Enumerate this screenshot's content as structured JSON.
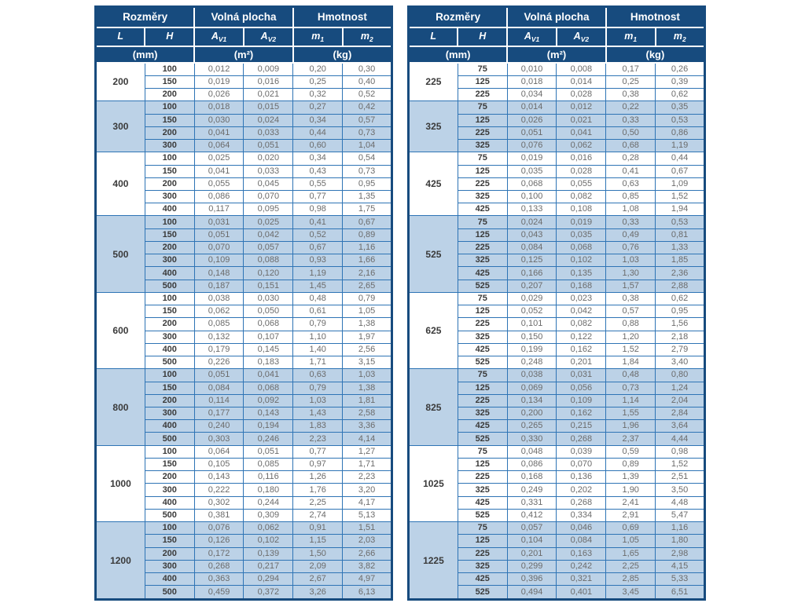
{
  "colors": {
    "header_bg": "#174B7E",
    "row_alt": "#BCD2E7",
    "border": "#2E74B5",
    "outer_border": "#174B7E",
    "value_text": "#6B6B6B",
    "dimension_text": "#3A3A3A"
  },
  "header": {
    "group_headers": [
      "Rozměry",
      "Volná plocha",
      "Hmotnost"
    ],
    "col_headers": [
      {
        "base": "L",
        "sub": ""
      },
      {
        "base": "H",
        "sub": ""
      },
      {
        "base": "A",
        "sub": "V1"
      },
      {
        "base": "A",
        "sub": "V2"
      },
      {
        "base": "m",
        "sub": "1"
      },
      {
        "base": "m",
        "sub": "2"
      }
    ],
    "unit_headers": [
      "(mm)",
      "(m²)",
      "(kg)"
    ]
  },
  "tables": [
    {
      "groups": [
        {
          "L": "200",
          "rows": [
            {
              "h": "100",
              "av1": "0,012",
              "av2": "0,009",
              "m1": "0,20",
              "m2": "0,30"
            },
            {
              "h": "150",
              "av1": "0,019",
              "av2": "0,016",
              "m1": "0,25",
              "m2": "0,40"
            },
            {
              "h": "200",
              "av1": "0,026",
              "av2": "0,021",
              "m1": "0,32",
              "m2": "0,52"
            }
          ]
        },
        {
          "L": "300",
          "rows": [
            {
              "h": "100",
              "av1": "0,018",
              "av2": "0,015",
              "m1": "0,27",
              "m2": "0,42"
            },
            {
              "h": "150",
              "av1": "0,030",
              "av2": "0,024",
              "m1": "0,34",
              "m2": "0,57"
            },
            {
              "h": "200",
              "av1": "0,041",
              "av2": "0,033",
              "m1": "0,44",
              "m2": "0,73"
            },
            {
              "h": "300",
              "av1": "0,064",
              "av2": "0,051",
              "m1": "0,60",
              "m2": "1,04"
            }
          ]
        },
        {
          "L": "400",
          "rows": [
            {
              "h": "100",
              "av1": "0,025",
              "av2": "0,020",
              "m1": "0,34",
              "m2": "0,54"
            },
            {
              "h": "150",
              "av1": "0,041",
              "av2": "0,033",
              "m1": "0,43",
              "m2": "0,73"
            },
            {
              "h": "200",
              "av1": "0,055",
              "av2": "0,045",
              "m1": "0,55",
              "m2": "0,95"
            },
            {
              "h": "300",
              "av1": "0,086",
              "av2": "0,070",
              "m1": "0,77",
              "m2": "1,35"
            },
            {
              "h": "400",
              "av1": "0,117",
              "av2": "0,095",
              "m1": "0,98",
              "m2": "1,75"
            }
          ]
        },
        {
          "L": "500",
          "rows": [
            {
              "h": "100",
              "av1": "0,031",
              "av2": "0,025",
              "m1": "0,41",
              "m2": "0,67"
            },
            {
              "h": "150",
              "av1": "0,051",
              "av2": "0,042",
              "m1": "0,52",
              "m2": "0,89"
            },
            {
              "h": "200",
              "av1": "0,070",
              "av2": "0,057",
              "m1": "0,67",
              "m2": "1,16"
            },
            {
              "h": "300",
              "av1": "0,109",
              "av2": "0,088",
              "m1": "0,93",
              "m2": "1,66"
            },
            {
              "h": "400",
              "av1": "0,148",
              "av2": "0,120",
              "m1": "1,19",
              "m2": "2,16"
            },
            {
              "h": "500",
              "av1": "0,187",
              "av2": "0,151",
              "m1": "1,45",
              "m2": "2,65"
            }
          ]
        },
        {
          "L": "600",
          "rows": [
            {
              "h": "100",
              "av1": "0,038",
              "av2": "0,030",
              "m1": "0,48",
              "m2": "0,79"
            },
            {
              "h": "150",
              "av1": "0,062",
              "av2": "0,050",
              "m1": "0,61",
              "m2": "1,05"
            },
            {
              "h": "200",
              "av1": "0,085",
              "av2": "0,068",
              "m1": "0,79",
              "m2": "1,38"
            },
            {
              "h": "300",
              "av1": "0,132",
              "av2": "0,107",
              "m1": "1,10",
              "m2": "1,97"
            },
            {
              "h": "400",
              "av1": "0,179",
              "av2": "0,145",
              "m1": "1,40",
              "m2": "2,56"
            },
            {
              "h": "500",
              "av1": "0,226",
              "av2": "0,183",
              "m1": "1,71",
              "m2": "3,15"
            }
          ]
        },
        {
          "L": "800",
          "rows": [
            {
              "h": "100",
              "av1": "0,051",
              "av2": "0,041",
              "m1": "0,63",
              "m2": "1,03"
            },
            {
              "h": "150",
              "av1": "0,084",
              "av2": "0,068",
              "m1": "0,79",
              "m2": "1,38"
            },
            {
              "h": "200",
              "av1": "0,114",
              "av2": "0,092",
              "m1": "1,03",
              "m2": "1,81"
            },
            {
              "h": "300",
              "av1": "0,177",
              "av2": "0,143",
              "m1": "1,43",
              "m2": "2,58"
            },
            {
              "h": "400",
              "av1": "0,240",
              "av2": "0,194",
              "m1": "1,83",
              "m2": "3,36"
            },
            {
              "h": "500",
              "av1": "0,303",
              "av2": "0,246",
              "m1": "2,23",
              "m2": "4,14"
            }
          ]
        },
        {
          "L": "1000",
          "rows": [
            {
              "h": "100",
              "av1": "0,064",
              "av2": "0,051",
              "m1": "0,77",
              "m2": "1,27"
            },
            {
              "h": "150",
              "av1": "0,105",
              "av2": "0,085",
              "m1": "0,97",
              "m2": "1,71"
            },
            {
              "h": "200",
              "av1": "0,143",
              "av2": "0,116",
              "m1": "1,26",
              "m2": "2,23"
            },
            {
              "h": "300",
              "av1": "0,222",
              "av2": "0,180",
              "m1": "1,76",
              "m2": "3,20"
            },
            {
              "h": "400",
              "av1": "0,302",
              "av2": "0,244",
              "m1": "2,25",
              "m2": "4,17"
            },
            {
              "h": "500",
              "av1": "0,381",
              "av2": "0,309",
              "m1": "2,74",
              "m2": "5,13"
            }
          ]
        },
        {
          "L": "1200",
          "rows": [
            {
              "h": "100",
              "av1": "0,076",
              "av2": "0,062",
              "m1": "0,91",
              "m2": "1,51"
            },
            {
              "h": "150",
              "av1": "0,126",
              "av2": "0,102",
              "m1": "1,15",
              "m2": "2,03"
            },
            {
              "h": "200",
              "av1": "0,172",
              "av2": "0,139",
              "m1": "1,50",
              "m2": "2,66"
            },
            {
              "h": "300",
              "av1": "0,268",
              "av2": "0,217",
              "m1": "2,09",
              "m2": "3,82"
            },
            {
              "h": "400",
              "av1": "0,363",
              "av2": "0,294",
              "m1": "2,67",
              "m2": "4,97"
            },
            {
              "h": "500",
              "av1": "0,459",
              "av2": "0,372",
              "m1": "3,26",
              "m2": "6,13"
            }
          ]
        }
      ]
    },
    {
      "groups": [
        {
          "L": "225",
          "rows": [
            {
              "h": "75",
              "av1": "0,010",
              "av2": "0,008",
              "m1": "0,17",
              "m2": "0,26"
            },
            {
              "h": "125",
              "av1": "0,018",
              "av2": "0,014",
              "m1": "0,25",
              "m2": "0,39"
            },
            {
              "h": "225",
              "av1": "0,034",
              "av2": "0,028",
              "m1": "0,38",
              "m2": "0,62"
            }
          ]
        },
        {
          "L": "325",
          "rows": [
            {
              "h": "75",
              "av1": "0,014",
              "av2": "0,012",
              "m1": "0,22",
              "m2": "0,35"
            },
            {
              "h": "125",
              "av1": "0,026",
              "av2": "0,021",
              "m1": "0,33",
              "m2": "0,53"
            },
            {
              "h": "225",
              "av1": "0,051",
              "av2": "0,041",
              "m1": "0,50",
              "m2": "0,86"
            },
            {
              "h": "325",
              "av1": "0,076",
              "av2": "0,062",
              "m1": "0,68",
              "m2": "1,19"
            }
          ]
        },
        {
          "L": "425",
          "rows": [
            {
              "h": "75",
              "av1": "0,019",
              "av2": "0,016",
              "m1": "0,28",
              "m2": "0,44"
            },
            {
              "h": "125",
              "av1": "0,035",
              "av2": "0,028",
              "m1": "0,41",
              "m2": "0,67"
            },
            {
              "h": "225",
              "av1": "0,068",
              "av2": "0,055",
              "m1": "0,63",
              "m2": "1,09"
            },
            {
              "h": "325",
              "av1": "0,100",
              "av2": "0,082",
              "m1": "0,85",
              "m2": "1,52"
            },
            {
              "h": "425",
              "av1": "0,133",
              "av2": "0,108",
              "m1": "1,08",
              "m2": "1,94"
            }
          ]
        },
        {
          "L": "525",
          "rows": [
            {
              "h": "75",
              "av1": "0,024",
              "av2": "0,019",
              "m1": "0,33",
              "m2": "0,53"
            },
            {
              "h": "125",
              "av1": "0,043",
              "av2": "0,035",
              "m1": "0,49",
              "m2": "0,81"
            },
            {
              "h": "225",
              "av1": "0,084",
              "av2": "0,068",
              "m1": "0,76",
              "m2": "1,33"
            },
            {
              "h": "325",
              "av1": "0,125",
              "av2": "0,102",
              "m1": "1,03",
              "m2": "1,85"
            },
            {
              "h": "425",
              "av1": "0,166",
              "av2": "0,135",
              "m1": "1,30",
              "m2": "2,36"
            },
            {
              "h": "525",
              "av1": "0,207",
              "av2": "0,168",
              "m1": "1,57",
              "m2": "2,88"
            }
          ]
        },
        {
          "L": "625",
          "rows": [
            {
              "h": "75",
              "av1": "0,029",
              "av2": "0,023",
              "m1": "0,38",
              "m2": "0,62"
            },
            {
              "h": "125",
              "av1": "0,052",
              "av2": "0,042",
              "m1": "0,57",
              "m2": "0,95"
            },
            {
              "h": "225",
              "av1": "0,101",
              "av2": "0,082",
              "m1": "0,88",
              "m2": "1,56"
            },
            {
              "h": "325",
              "av1": "0,150",
              "av2": "0,122",
              "m1": "1,20",
              "m2": "2,18"
            },
            {
              "h": "425",
              "av1": "0,199",
              "av2": "0,162",
              "m1": "1,52",
              "m2": "2,79"
            },
            {
              "h": "525",
              "av1": "0,248",
              "av2": "0,201",
              "m1": "1,84",
              "m2": "3,40"
            }
          ]
        },
        {
          "L": "825",
          "rows": [
            {
              "h": "75",
              "av1": "0,038",
              "av2": "0,031",
              "m1": "0,48",
              "m2": "0,80"
            },
            {
              "h": "125",
              "av1": "0,069",
              "av2": "0,056",
              "m1": "0,73",
              "m2": "1,24"
            },
            {
              "h": "225",
              "av1": "0,134",
              "av2": "0,109",
              "m1": "1,14",
              "m2": "2,04"
            },
            {
              "h": "325",
              "av1": "0,200",
              "av2": "0,162",
              "m1": "1,55",
              "m2": "2,84"
            },
            {
              "h": "425",
              "av1": "0,265",
              "av2": "0,215",
              "m1": "1,96",
              "m2": "3,64"
            },
            {
              "h": "525",
              "av1": "0,330",
              "av2": "0,268",
              "m1": "2,37",
              "m2": "4,44"
            }
          ]
        },
        {
          "L": "1025",
          "rows": [
            {
              "h": "75",
              "av1": "0,048",
              "av2": "0,039",
              "m1": "0,59",
              "m2": "0,98"
            },
            {
              "h": "125",
              "av1": "0,086",
              "av2": "0,070",
              "m1": "0,89",
              "m2": "1,52"
            },
            {
              "h": "225",
              "av1": "0,168",
              "av2": "0,136",
              "m1": "1,39",
              "m2": "2,51"
            },
            {
              "h": "325",
              "av1": "0,249",
              "av2": "0,202",
              "m1": "1,90",
              "m2": "3,50"
            },
            {
              "h": "425",
              "av1": "0,331",
              "av2": "0,268",
              "m1": "2,41",
              "m2": "4,48"
            },
            {
              "h": "525",
              "av1": "0,412",
              "av2": "0,334",
              "m1": "2,91",
              "m2": "5,47"
            }
          ]
        },
        {
          "L": "1225",
          "rows": [
            {
              "h": "75",
              "av1": "0,057",
              "av2": "0,046",
              "m1": "0,69",
              "m2": "1,16"
            },
            {
              "h": "125",
              "av1": "0,104",
              "av2": "0,084",
              "m1": "1,05",
              "m2": "1,80"
            },
            {
              "h": "225",
              "av1": "0,201",
              "av2": "0,163",
              "m1": "1,65",
              "m2": "2,98"
            },
            {
              "h": "325",
              "av1": "0,299",
              "av2": "0,242",
              "m1": "2,25",
              "m2": "4,15"
            },
            {
              "h": "425",
              "av1": "0,396",
              "av2": "0,321",
              "m1": "2,85",
              "m2": "5,33"
            },
            {
              "h": "525",
              "av1": "0,494",
              "av2": "0,401",
              "m1": "3,45",
              "m2": "6,51"
            }
          ]
        }
      ]
    }
  ]
}
